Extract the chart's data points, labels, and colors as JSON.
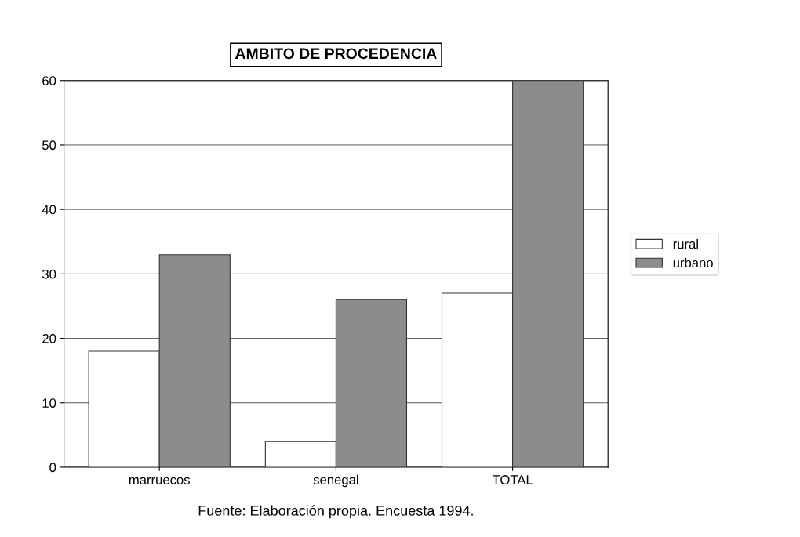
{
  "chart_data": {
    "type": "bar",
    "title": "AMBITO DE PROCEDENCIA",
    "categories": [
      "marruecos",
      "senegal",
      "TOTAL"
    ],
    "series": [
      {
        "name": "rural",
        "color": "#ffffff",
        "values": [
          18,
          4,
          27
        ]
      },
      {
        "name": "urbano",
        "color": "#8c8c8c",
        "values": [
          33,
          26,
          60
        ]
      }
    ],
    "ylim": [
      0,
      60
    ],
    "yticks": [
      0,
      10,
      20,
      30,
      40,
      50,
      60
    ],
    "grid": "y",
    "legend": "right",
    "annotations": [
      "Fuente: Elaboración propia. Encuesta 1994."
    ]
  }
}
